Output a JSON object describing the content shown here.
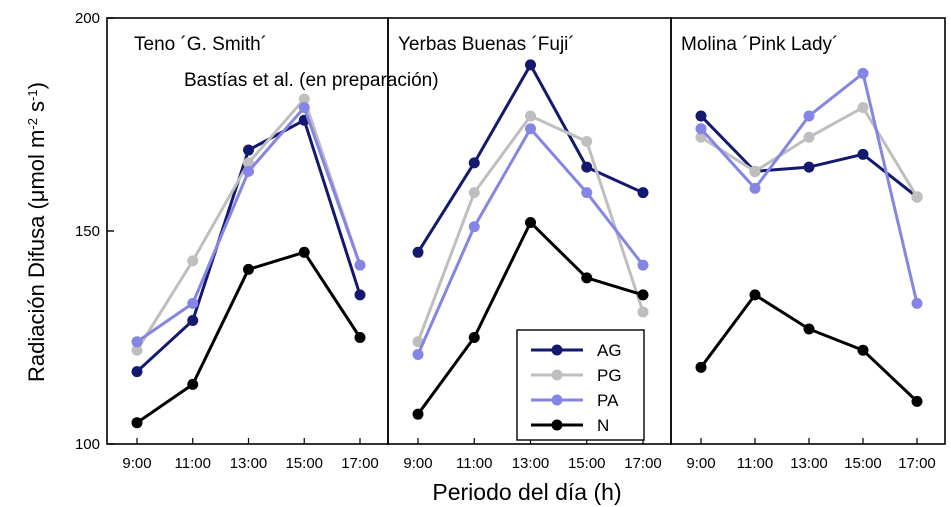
{
  "chart_data": {
    "type": "line",
    "ylabel_main": "Radiación Difusa (",
    "ylabel_mu": "μ",
    "ylabel_unit": "mol m",
    "ylabel_exp1": "-2",
    "ylabel_s": " s",
    "ylabel_exp2": "-1",
    "ylabel_close": ")",
    "xlabel": "Periodo del día (h)",
    "ylim": [
      100,
      200
    ],
    "yticks": [
      "100",
      "150",
      "200"
    ],
    "categories": [
      "9:00",
      "11:00",
      "13:00",
      "15:00",
      "17:00"
    ],
    "annotation": "Bastías et al. (en preparación)",
    "legend": {
      "position": "inside-center",
      "entries": [
        "AG",
        "PG",
        "PA",
        "N"
      ]
    },
    "colors": {
      "AG": "#141970",
      "PG": "#bfbfbf",
      "PA": "#8585e6",
      "N": "#000000"
    },
    "panels": [
      {
        "title": "Teno ´G. Smith´",
        "series": [
          {
            "name": "AG",
            "values": [
              117,
              129,
              169,
              176,
              135
            ]
          },
          {
            "name": "PG",
            "values": [
              122,
              143,
              166,
              181,
              142
            ]
          },
          {
            "name": "PA",
            "values": [
              124,
              133,
              164,
              179,
              142
            ]
          },
          {
            "name": "N",
            "values": [
              105,
              114,
              141,
              145,
              125
            ]
          }
        ]
      },
      {
        "title": "Yerbas Buenas ´Fuji´",
        "series": [
          {
            "name": "AG",
            "values": [
              145,
              166,
              189,
              165,
              159
            ]
          },
          {
            "name": "PG",
            "values": [
              124,
              159,
              177,
              171,
              131
            ]
          },
          {
            "name": "PA",
            "values": [
              121,
              151,
              174,
              159,
              142
            ]
          },
          {
            "name": "N",
            "values": [
              107,
              125,
              152,
              139,
              135
            ]
          }
        ]
      },
      {
        "title": "Molina ´Pink Lady´",
        "series": [
          {
            "name": "AG",
            "values": [
              177,
              164,
              165,
              168,
              158
            ]
          },
          {
            "name": "PG",
            "values": [
              172,
              164,
              172,
              179,
              158
            ]
          },
          {
            "name": "PA",
            "values": [
              174,
              160,
              177,
              187,
              133
            ]
          },
          {
            "name": "N",
            "values": [
              118,
              135,
              127,
              122,
              110
            ]
          }
        ]
      }
    ]
  }
}
